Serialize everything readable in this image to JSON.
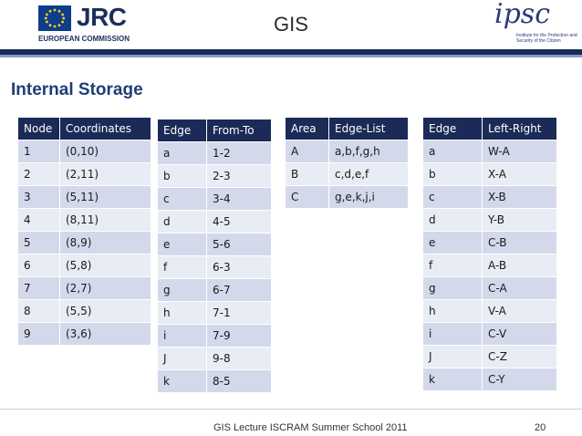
{
  "header": {
    "jrc": "JRC",
    "ec": "EUROPEAN COMMISSION",
    "title": "GIS",
    "ipsc": "ipsc",
    "ipsc_sub": "Institute for the Protection and Security of the Citizen"
  },
  "section_title": "Internal Storage",
  "nodes": {
    "headers": [
      "Node",
      "Coordinates"
    ],
    "rows": [
      [
        "1",
        "(0,10)"
      ],
      [
        "2",
        "(2,11)"
      ],
      [
        "3",
        "(5,11)"
      ],
      [
        "4",
        "(8,11)"
      ],
      [
        "5",
        "(8,9)"
      ],
      [
        "6",
        "(5,8)"
      ],
      [
        "7",
        "(2,7)"
      ],
      [
        "8",
        "(5,5)"
      ],
      [
        "9",
        "(3,6)"
      ]
    ]
  },
  "edges": {
    "headers": [
      "Edge",
      "From-To"
    ],
    "rows": [
      [
        "a",
        "1-2"
      ],
      [
        "b",
        "2-3"
      ],
      [
        "c",
        "3-4"
      ],
      [
        "d",
        "4-5"
      ],
      [
        "e",
        "5-6"
      ],
      [
        "f",
        "6-3"
      ],
      [
        "g",
        "6-7"
      ],
      [
        "h",
        "7-1"
      ],
      [
        "i",
        "7-9"
      ],
      [
        "J",
        "9-8"
      ],
      [
        "k",
        "8-5"
      ]
    ]
  },
  "areas": {
    "headers": [
      "Area",
      "Edge-List"
    ],
    "rows": [
      [
        "A",
        "a,b,f,g,h"
      ],
      [
        "B",
        "c,d,e,f"
      ],
      [
        "C",
        "g,e,k,j,i"
      ]
    ]
  },
  "left_right": {
    "headers": [
      "Edge",
      "Left-Right"
    ],
    "rows": [
      [
        "a",
        "W-A"
      ],
      [
        "b",
        "X-A"
      ],
      [
        "c",
        "X-B"
      ],
      [
        "d",
        "Y-B"
      ],
      [
        "e",
        "C-B"
      ],
      [
        "f",
        "A-B"
      ],
      [
        "g",
        "C-A"
      ],
      [
        "h",
        "V-A"
      ],
      [
        "i",
        "C-V"
      ],
      [
        "J",
        "C-Z"
      ],
      [
        "k",
        "C-Y"
      ]
    ]
  },
  "footer": {
    "text": "GIS Lecture ISCRAM Summer School 2011",
    "page": "20"
  }
}
